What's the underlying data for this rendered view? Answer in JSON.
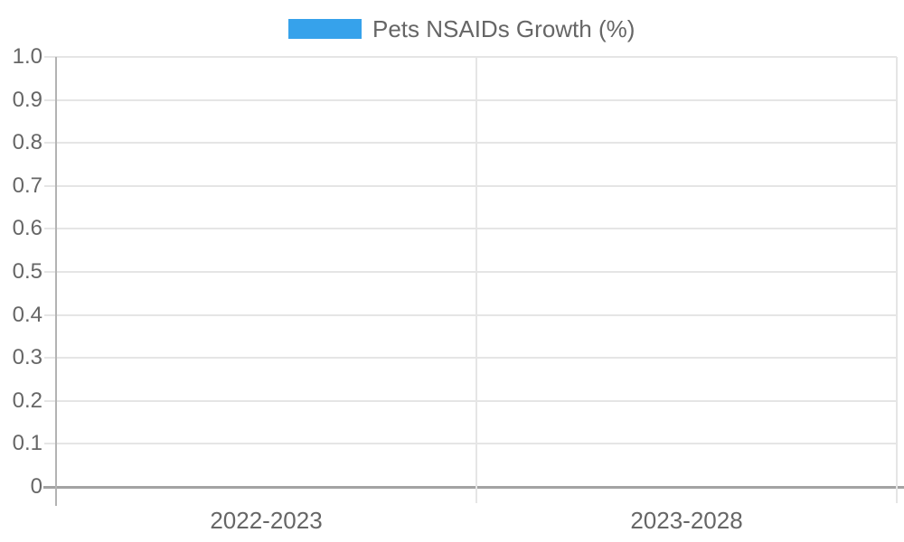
{
  "legend": {
    "label": "Pets NSAIDs Growth (%)",
    "swatch_color": "#36a2eb",
    "position": "top"
  },
  "chart_data": {
    "type": "bar",
    "title": "Pets NSAIDs Growth (%)",
    "categories": [
      "2022-2023",
      "2023-2028"
    ],
    "series": [
      {
        "name": "Pets NSAIDs Growth (%)",
        "color": "#36a2eb",
        "values": [
          null,
          null
        ]
      }
    ],
    "bars_rendered": false,
    "xlabel": "",
    "ylabel": "",
    "ylim": [
      0,
      1.0
    ],
    "y_ticks": [
      "1.0",
      "0.9",
      "0.8",
      "0.7",
      "0.6",
      "0.5",
      "0.4",
      "0.3",
      "0.2",
      "0.1",
      "0"
    ],
    "grid": true,
    "legend_position": "top"
  },
  "colors": {
    "accent": "#36a2eb",
    "label": "#666666",
    "gridline": "#e5e5e5",
    "axis": "#a3a3a3",
    "y_axis_line": "#b3b3b3",
    "background": "#ffffff"
  }
}
